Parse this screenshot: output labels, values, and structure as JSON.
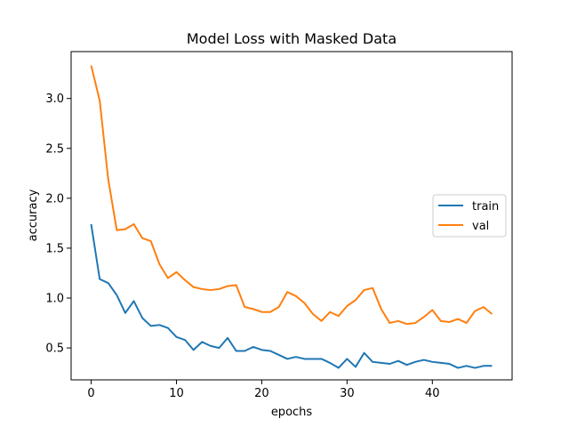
{
  "chart_data": {
    "type": "line",
    "title": "Model Loss with Masked Data",
    "xlabel": "epochs",
    "ylabel": "accuracy",
    "xlim": [
      -2.35,
      49.35
    ],
    "ylim": [
      0.18,
      3.47
    ],
    "xticks": [
      0,
      10,
      20,
      30,
      40
    ],
    "yticks": [
      0.5,
      1.0,
      1.5,
      2.0,
      2.5,
      3.0
    ],
    "xtick_labels": [
      "0",
      "10",
      "20",
      "30",
      "40"
    ],
    "ytick_labels": [
      "0.5",
      "1.0",
      "1.5",
      "2.0",
      "2.5",
      "3.0"
    ],
    "grid": false,
    "legend_position": "center-right",
    "x": [
      0,
      1,
      2,
      3,
      4,
      5,
      6,
      7,
      8,
      9,
      10,
      11,
      12,
      13,
      14,
      15,
      16,
      17,
      18,
      19,
      20,
      21,
      22,
      23,
      24,
      25,
      26,
      27,
      28,
      29,
      30,
      31,
      32,
      33,
      34,
      35,
      36,
      37,
      38,
      39,
      40,
      41,
      42,
      43,
      44,
      45,
      46,
      47
    ],
    "series": [
      {
        "name": "train",
        "color": "#1f77b4",
        "values": [
          1.74,
          1.19,
          1.15,
          1.03,
          0.85,
          0.97,
          0.8,
          0.72,
          0.73,
          0.7,
          0.61,
          0.58,
          0.48,
          0.56,
          0.52,
          0.5,
          0.6,
          0.47,
          0.47,
          0.51,
          0.48,
          0.47,
          0.43,
          0.39,
          0.41,
          0.39,
          0.39,
          0.39,
          0.35,
          0.3,
          0.39,
          0.31,
          0.45,
          0.36,
          0.35,
          0.34,
          0.37,
          0.33,
          0.36,
          0.38,
          0.36,
          0.35,
          0.34,
          0.3,
          0.32,
          0.3,
          0.32,
          0.32
        ]
      },
      {
        "name": "val",
        "color": "#ff7f0e",
        "values": [
          3.33,
          2.98,
          2.19,
          1.68,
          1.69,
          1.74,
          1.6,
          1.57,
          1.34,
          1.2,
          1.26,
          1.18,
          1.11,
          1.09,
          1.08,
          1.09,
          1.12,
          1.13,
          0.91,
          0.89,
          0.86,
          0.86,
          0.91,
          1.06,
          1.02,
          0.95,
          0.84,
          0.77,
          0.86,
          0.82,
          0.92,
          0.98,
          1.08,
          1.1,
          0.89,
          0.75,
          0.77,
          0.74,
          0.75,
          0.81,
          0.88,
          0.77,
          0.76,
          0.79,
          0.75,
          0.87,
          0.91,
          0.84
        ]
      }
    ]
  }
}
